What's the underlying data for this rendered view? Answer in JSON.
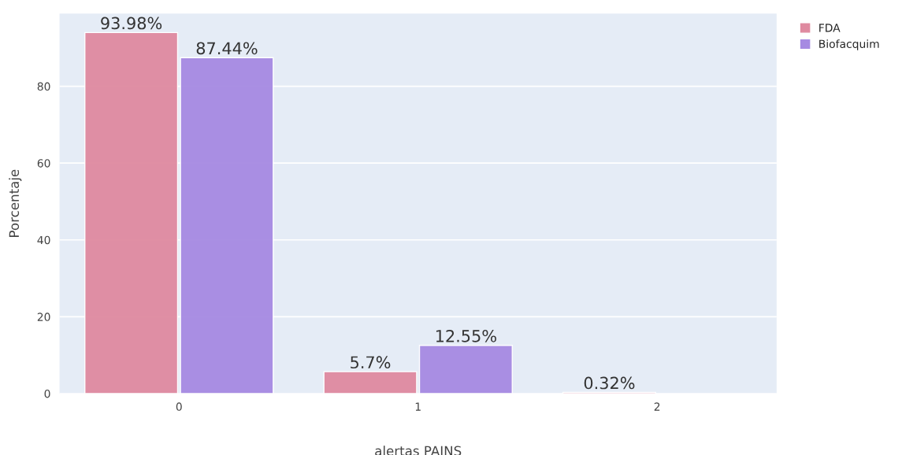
{
  "chart_data": {
    "type": "bar",
    "xlabel": "alertas PAINS",
    "ylabel": "Porcentaje",
    "categories": [
      "0",
      "1",
      "2"
    ],
    "series": [
      {
        "name": "FDA",
        "color": "#df8aa0",
        "values": [
          93.98,
          5.7,
          0.32
        ],
        "value_labels": [
          "93.98%",
          "5.7%",
          "0.32%"
        ]
      },
      {
        "name": "Biofacquim",
        "color": "#a68ae2",
        "values": [
          87.44,
          12.55,
          null
        ],
        "value_labels": [
          "87.44%",
          "12.55%",
          null
        ]
      }
    ],
    "ylim": [
      0,
      98.9
    ],
    "yticks": [
      0,
      20,
      40,
      60,
      80
    ],
    "grid": "y",
    "legend": "top right"
  }
}
